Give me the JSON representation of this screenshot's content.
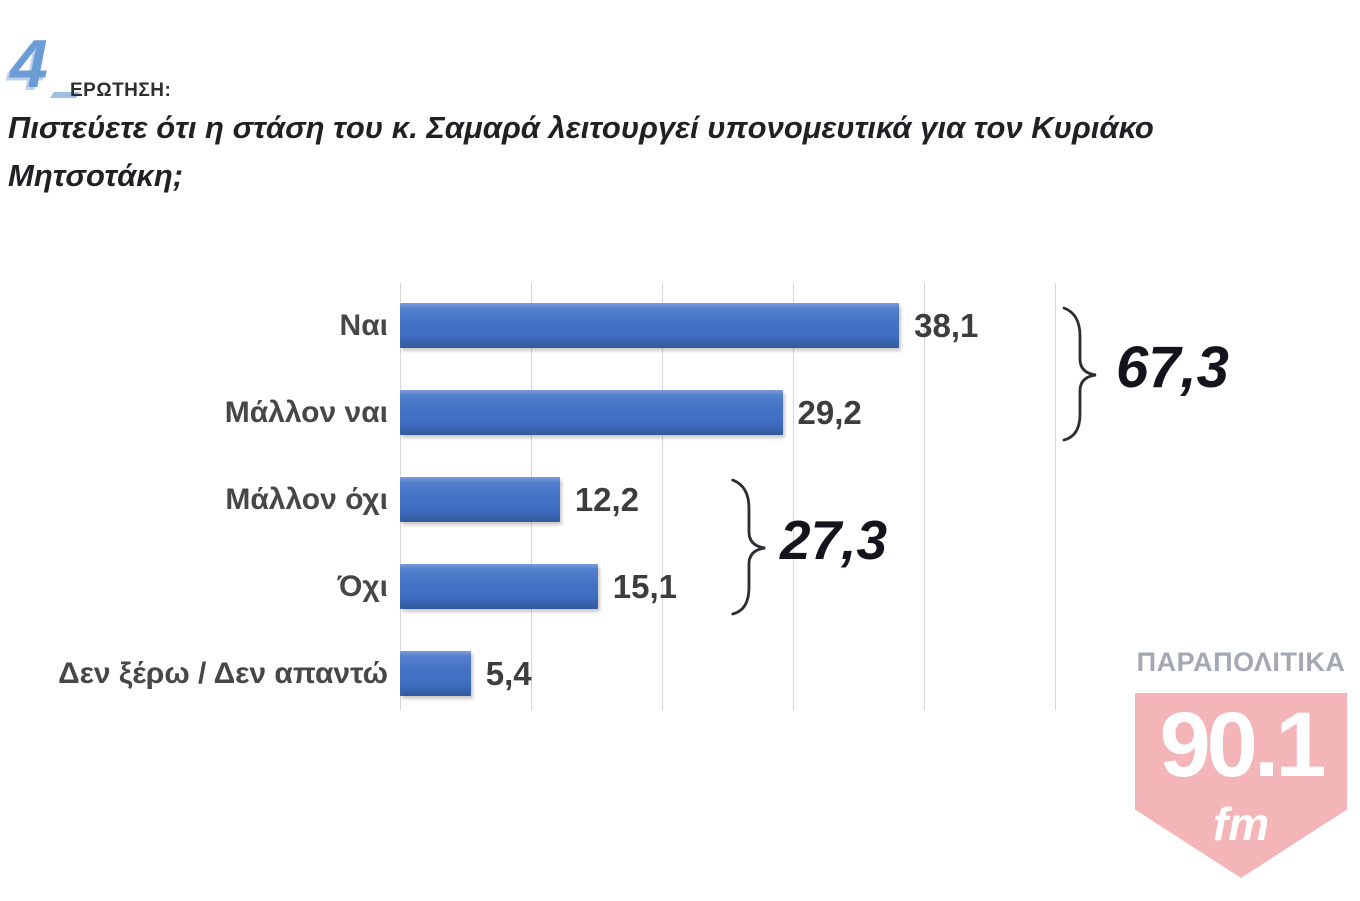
{
  "header": {
    "number": "4",
    "kicker": "ΕΡΩΤΗΣΗ:",
    "question": "Πιστεύετε ότι η στάση του κ. Σαμαρά λειτουργεί υπονομευτικά για τον Κυριάκο Μητσοτάκη;"
  },
  "chart_data": {
    "type": "bar",
    "orientation": "horizontal",
    "categories": [
      "Ναι",
      "Μάλλον ναι",
      "Μάλλον όχι",
      "Όχι",
      "Δεν ξέρω / Δεν απαντώ"
    ],
    "values": [
      38.1,
      29.2,
      12.2,
      15.1,
      5.4
    ],
    "value_labels": [
      "38,1",
      "29,2",
      "12,2",
      "15,1",
      "5,4"
    ],
    "title": "",
    "xlabel": "",
    "ylabel": "",
    "xlim": [
      0,
      50
    ],
    "gridline_step": 10,
    "grid": true,
    "tick_labels_visible": false,
    "legend": false,
    "bar_color": "#4472c4",
    "gridline_color": "#d7d7d7",
    "groups": [
      {
        "label": "67,3",
        "value": 67.3,
        "sum_of": [
          "Ναι",
          "Μάλλον ναι"
        ]
      },
      {
        "label": "27,3",
        "value": 27.3,
        "sum_of": [
          "Μάλλον όχι",
          "Όχι"
        ]
      }
    ]
  },
  "watermark": {
    "brand": "ΠΑΡΑΠΟΛΙΤΙΚΑ",
    "frequency": "90.1",
    "band": "fm",
    "shield_color": "#f4b5b9",
    "brand_color": "#a3a8b2"
  },
  "colors": {
    "background": "#ffffff",
    "question_text": "#212125",
    "bar_blue": "#4472c4",
    "value_text": "#3d3d3d",
    "total_text": "#14141c",
    "number_blue": "#6b9cd6"
  }
}
